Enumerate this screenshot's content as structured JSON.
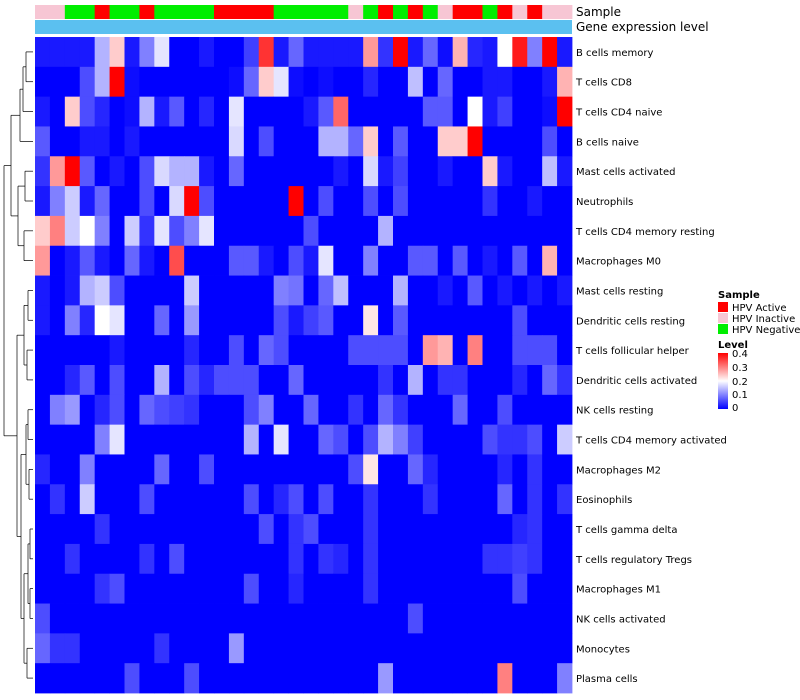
{
  "chart_data": {
    "type": "heatmap",
    "rows": [
      "B cells memory",
      "T cells CD8",
      "T cells CD4 naive",
      "B cells naive",
      "Mast cells activated",
      "Neutrophils",
      "T cells CD4 memory resting",
      "Macrophages M0",
      "Mast cells resting",
      "Dendritic cells resting",
      "T cells follicular helper",
      "Dendritic cells activated",
      "NK cells resting",
      "T cells CD4 memory activated",
      "Macrophages M2",
      "Eosinophils",
      "T cells gamma delta",
      "T cells regulatory  Tregs",
      "Macrophages M1",
      "NK cells activated",
      "Monocytes",
      "Plasma cells"
    ],
    "annotation_rows": [
      "Sample",
      "Gene expression level"
    ],
    "sample_groups": [
      1,
      1,
      2,
      2,
      0,
      2,
      2,
      0,
      2,
      2,
      2,
      2,
      0,
      0,
      0,
      0,
      2,
      2,
      2,
      2,
      2,
      1,
      2,
      0,
      2,
      0,
      2,
      1,
      0,
      0,
      2,
      0,
      1,
      0,
      1,
      1
    ],
    "expression_level_bar": "single continuous bar",
    "values": [
      [
        0.02,
        0.02,
        0.02,
        0.02,
        0.14,
        0.24,
        0.02,
        0.1,
        0.18,
        0.0,
        0.0,
        0.02,
        0.0,
        0.0,
        0.05,
        0.36,
        0.02,
        0.08,
        0.02,
        0.02,
        0.02,
        0.02,
        0.28,
        0.04,
        0.4,
        0.02,
        0.08,
        0.01,
        0.26,
        0.03,
        0.02,
        0.2,
        0.38,
        0.1,
        0.4,
        0.02
      ],
      [
        0.0,
        0.0,
        0.0,
        0.06,
        0.14,
        0.4,
        0.01,
        0.0,
        0.0,
        0.0,
        0.0,
        0.0,
        0.0,
        0.01,
        0.08,
        0.24,
        0.18,
        0.01,
        0.0,
        0.01,
        0.0,
        0.0,
        0.03,
        0.0,
        0.0,
        0.15,
        0.0,
        0.08,
        0.0,
        0.0,
        0.02,
        0.02,
        0.0,
        0.0,
        0.02,
        0.26
      ],
      [
        0.02,
        0.0,
        0.24,
        0.06,
        0.03,
        0.0,
        0.01,
        0.14,
        0.02,
        0.07,
        0.0,
        0.03,
        0.0,
        0.18,
        0.0,
        0.0,
        0.0,
        0.0,
        0.02,
        0.07,
        0.32,
        0.0,
        0.0,
        0.0,
        0.0,
        0.0,
        0.07,
        0.07,
        0.0,
        0.2,
        0.02,
        0.05,
        0.0,
        0.0,
        0.01,
        0.4
      ],
      [
        0.07,
        0.0,
        0.0,
        0.02,
        0.02,
        0.0,
        0.02,
        0.0,
        0.0,
        0.0,
        0.0,
        0.0,
        0.0,
        0.17,
        0.0,
        0.06,
        0.0,
        0.0,
        0.0,
        0.14,
        0.14,
        0.08,
        0.24,
        0.0,
        0.07,
        0.0,
        0.0,
        0.24,
        0.24,
        0.4,
        0.0,
        0.0,
        0.0,
        0.0,
        0.06,
        0.0
      ],
      [
        0.04,
        0.28,
        0.4,
        0.07,
        0.0,
        0.02,
        0.0,
        0.06,
        0.17,
        0.14,
        0.14,
        0.02,
        0.0,
        0.08,
        0.0,
        0.0,
        0.0,
        0.0,
        0.0,
        0.0,
        0.02,
        0.0,
        0.17,
        0.02,
        0.05,
        0.0,
        0.0,
        0.02,
        0.0,
        0.0,
        0.24,
        0.02,
        0.0,
        0.0,
        0.15,
        0.02
      ],
      [
        0.02,
        0.1,
        0.16,
        0.02,
        0.08,
        0.0,
        0.0,
        0.06,
        0.0,
        0.17,
        0.4,
        0.06,
        0.0,
        0.0,
        0.0,
        0.0,
        0.0,
        0.4,
        0.0,
        0.06,
        0.0,
        0.0,
        0.06,
        0.0,
        0.06,
        0.0,
        0.0,
        0.0,
        0.0,
        0.0,
        0.04,
        0.0,
        0.0,
        0.02,
        0.0,
        0.0
      ],
      [
        0.24,
        0.3,
        0.16,
        0.2,
        0.1,
        0.0,
        0.16,
        0.04,
        0.18,
        0.06,
        0.1,
        0.18,
        0.0,
        0.0,
        0.0,
        0.0,
        0.0,
        0.0,
        0.06,
        0.0,
        0.0,
        0.0,
        0.0,
        0.14,
        0.0,
        0.0,
        0.0,
        0.0,
        0.0,
        0.0,
        0.0,
        0.0,
        0.0,
        0.0,
        0.0,
        0.0
      ],
      [
        0.28,
        0.0,
        0.02,
        0.07,
        0.02,
        0.0,
        0.08,
        0.02,
        0.0,
        0.34,
        0.0,
        0.0,
        0.0,
        0.07,
        0.07,
        0.02,
        0.0,
        0.06,
        0.02,
        0.18,
        0.0,
        0.0,
        0.1,
        0.0,
        0.0,
        0.07,
        0.07,
        0.0,
        0.07,
        0.0,
        0.02,
        0.0,
        0.07,
        0.0,
        0.26,
        0.0
      ],
      [
        0.02,
        0.0,
        0.02,
        0.14,
        0.16,
        0.06,
        0.0,
        0.0,
        0.0,
        0.0,
        0.16,
        0.0,
        0.0,
        0.0,
        0.0,
        0.0,
        0.1,
        0.09,
        0.0,
        0.08,
        0.15,
        0.0,
        0.0,
        0.0,
        0.14,
        0.0,
        0.0,
        0.02,
        0.0,
        0.07,
        0.0,
        0.02,
        0.0,
        0.02,
        0.0,
        0.02
      ],
      [
        0.02,
        0.0,
        0.1,
        0.03,
        0.2,
        0.18,
        0.0,
        0.0,
        0.08,
        0.0,
        0.12,
        0.0,
        0.0,
        0.0,
        0.0,
        0.0,
        0.06,
        0.02,
        0.05,
        0.07,
        0.0,
        0.0,
        0.22,
        0.0,
        0.07,
        0.0,
        0.0,
        0.0,
        0.0,
        0.0,
        0.0,
        0.0,
        0.06,
        0.0,
        0.0,
        0.0
      ],
      [
        0.0,
        0.0,
        0.0,
        0.0,
        0.0,
        0.02,
        0.0,
        0.0,
        0.0,
        0.0,
        0.03,
        0.0,
        0.0,
        0.06,
        0.0,
        0.08,
        0.06,
        0.0,
        0.0,
        0.0,
        0.0,
        0.06,
        0.06,
        0.06,
        0.06,
        0.0,
        0.28,
        0.26,
        0.0,
        0.3,
        0.0,
        0.0,
        0.06,
        0.06,
        0.06,
        0.0
      ],
      [
        0.0,
        0.0,
        0.03,
        0.07,
        0.0,
        0.06,
        0.0,
        0.0,
        0.14,
        0.0,
        0.06,
        0.03,
        0.06,
        0.06,
        0.06,
        0.0,
        0.0,
        0.08,
        0.0,
        0.0,
        0.0,
        0.0,
        0.0,
        0.04,
        0.0,
        0.14,
        0.0,
        0.04,
        0.04,
        0.0,
        0.0,
        0.0,
        0.03,
        0.0,
        0.08,
        0.04
      ],
      [
        0.0,
        0.1,
        0.12,
        0.0,
        0.03,
        0.06,
        0.0,
        0.08,
        0.06,
        0.05,
        0.04,
        0.0,
        0.0,
        0.0,
        0.06,
        0.1,
        0.0,
        0.0,
        0.08,
        0.0,
        0.0,
        0.04,
        0.0,
        0.08,
        0.04,
        0.0,
        0.0,
        0.0,
        0.08,
        0.0,
        0.0,
        0.06,
        0.0,
        0.0,
        0.0,
        0.0
      ],
      [
        0.0,
        0.0,
        0.0,
        0.0,
        0.1,
        0.18,
        0.0,
        0.0,
        0.0,
        0.0,
        0.0,
        0.0,
        0.0,
        0.0,
        0.14,
        0.0,
        0.18,
        0.0,
        0.0,
        0.08,
        0.06,
        0.0,
        0.06,
        0.14,
        0.1,
        0.05,
        0.0,
        0.0,
        0.0,
        0.0,
        0.06,
        0.04,
        0.04,
        0.06,
        0.0,
        0.16
      ],
      [
        0.03,
        0.0,
        0.0,
        0.1,
        0.0,
        0.0,
        0.0,
        0.0,
        0.08,
        0.0,
        0.0,
        0.06,
        0.0,
        0.0,
        0.0,
        0.0,
        0.0,
        0.0,
        0.0,
        0.0,
        0.0,
        0.06,
        0.22,
        0.0,
        0.0,
        0.08,
        0.03,
        0.0,
        0.0,
        0.0,
        0.0,
        0.03,
        0.0,
        0.04,
        0.0,
        0.0
      ],
      [
        0.0,
        0.04,
        0.0,
        0.16,
        0.0,
        0.0,
        0.0,
        0.06,
        0.0,
        0.0,
        0.0,
        0.0,
        0.0,
        0.0,
        0.06,
        0.0,
        0.03,
        0.06,
        0.0,
        0.06,
        0.0,
        0.0,
        0.04,
        0.0,
        0.0,
        0.0,
        0.04,
        0.0,
        0.0,
        0.0,
        0.0,
        0.08,
        0.0,
        0.04,
        0.0,
        0.04
      ],
      [
        0.0,
        0.0,
        0.0,
        0.0,
        0.04,
        0.0,
        0.0,
        0.0,
        0.0,
        0.0,
        0.0,
        0.0,
        0.0,
        0.0,
        0.0,
        0.06,
        0.0,
        0.04,
        0.06,
        0.0,
        0.0,
        0.0,
        0.04,
        0.0,
        0.0,
        0.0,
        0.0,
        0.0,
        0.0,
        0.0,
        0.0,
        0.0,
        0.03,
        0.04,
        0.0,
        0.0
      ],
      [
        0.0,
        0.0,
        0.04,
        0.0,
        0.0,
        0.0,
        0.0,
        0.04,
        0.0,
        0.06,
        0.0,
        0.0,
        0.0,
        0.0,
        0.0,
        0.0,
        0.0,
        0.04,
        0.0,
        0.04,
        0.03,
        0.0,
        0.04,
        0.0,
        0.0,
        0.0,
        0.0,
        0.0,
        0.0,
        0.0,
        0.04,
        0.04,
        0.05,
        0.04,
        0.0,
        0.0
      ],
      [
        0.0,
        0.0,
        0.0,
        0.0,
        0.04,
        0.06,
        0.0,
        0.0,
        0.0,
        0.0,
        0.0,
        0.0,
        0.0,
        0.0,
        0.06,
        0.0,
        0.0,
        0.03,
        0.0,
        0.0,
        0.0,
        0.0,
        0.04,
        0.0,
        0.0,
        0.0,
        0.0,
        0.0,
        0.0,
        0.0,
        0.0,
        0.0,
        0.06,
        0.0,
        0.0,
        0.0
      ],
      [
        0.06,
        0.0,
        0.0,
        0.0,
        0.0,
        0.0,
        0.0,
        0.0,
        0.0,
        0.0,
        0.0,
        0.0,
        0.0,
        0.0,
        0.0,
        0.0,
        0.0,
        0.0,
        0.0,
        0.0,
        0.0,
        0.0,
        0.0,
        0.0,
        0.0,
        0.06,
        0.0,
        0.0,
        0.0,
        0.0,
        0.0,
        0.0,
        0.0,
        0.0,
        0.0,
        0.0
      ],
      [
        0.08,
        0.04,
        0.04,
        0.0,
        0.0,
        0.0,
        0.0,
        0.0,
        0.04,
        0.0,
        0.0,
        0.0,
        0.0,
        0.12,
        0.0,
        0.0,
        0.0,
        0.0,
        0.0,
        0.0,
        0.0,
        0.0,
        0.0,
        0.0,
        0.0,
        0.0,
        0.0,
        0.0,
        0.0,
        0.0,
        0.0,
        0.0,
        0.0,
        0.0,
        0.0,
        0.0
      ],
      [
        0.0,
        0.0,
        0.0,
        0.0,
        0.0,
        0.0,
        0.06,
        0.0,
        0.0,
        0.0,
        0.06,
        0.0,
        0.0,
        0.0,
        0.0,
        0.0,
        0.0,
        0.0,
        0.0,
        0.0,
        0.0,
        0.0,
        0.0,
        0.12,
        0.0,
        0.0,
        0.0,
        0.0,
        0.0,
        0.0,
        0.0,
        0.3,
        0.0,
        0.0,
        0.0,
        0.1
      ]
    ],
    "value_range": [
      0,
      0.4
    ],
    "colorscale": [
      "#0000ff",
      "#ffffff",
      "#ff0000"
    ]
  },
  "annotations": {
    "sample_label": "Sample",
    "expression_label": "Gene expression level"
  },
  "legend": {
    "sample": {
      "title": "Sample",
      "items": [
        {
          "label": "HPV Active",
          "color": "#ff0000"
        },
        {
          "label": "HPV Inactive",
          "color": "#f7c6d4"
        },
        {
          "label": "HPV Negative",
          "color": "#00ee00"
        }
      ]
    },
    "level": {
      "title": "Level",
      "ticks": [
        "0.4",
        "0.3",
        "0.2",
        "0.1",
        "0"
      ]
    }
  },
  "colors": {
    "expression_bar": "#5bc0f0"
  }
}
